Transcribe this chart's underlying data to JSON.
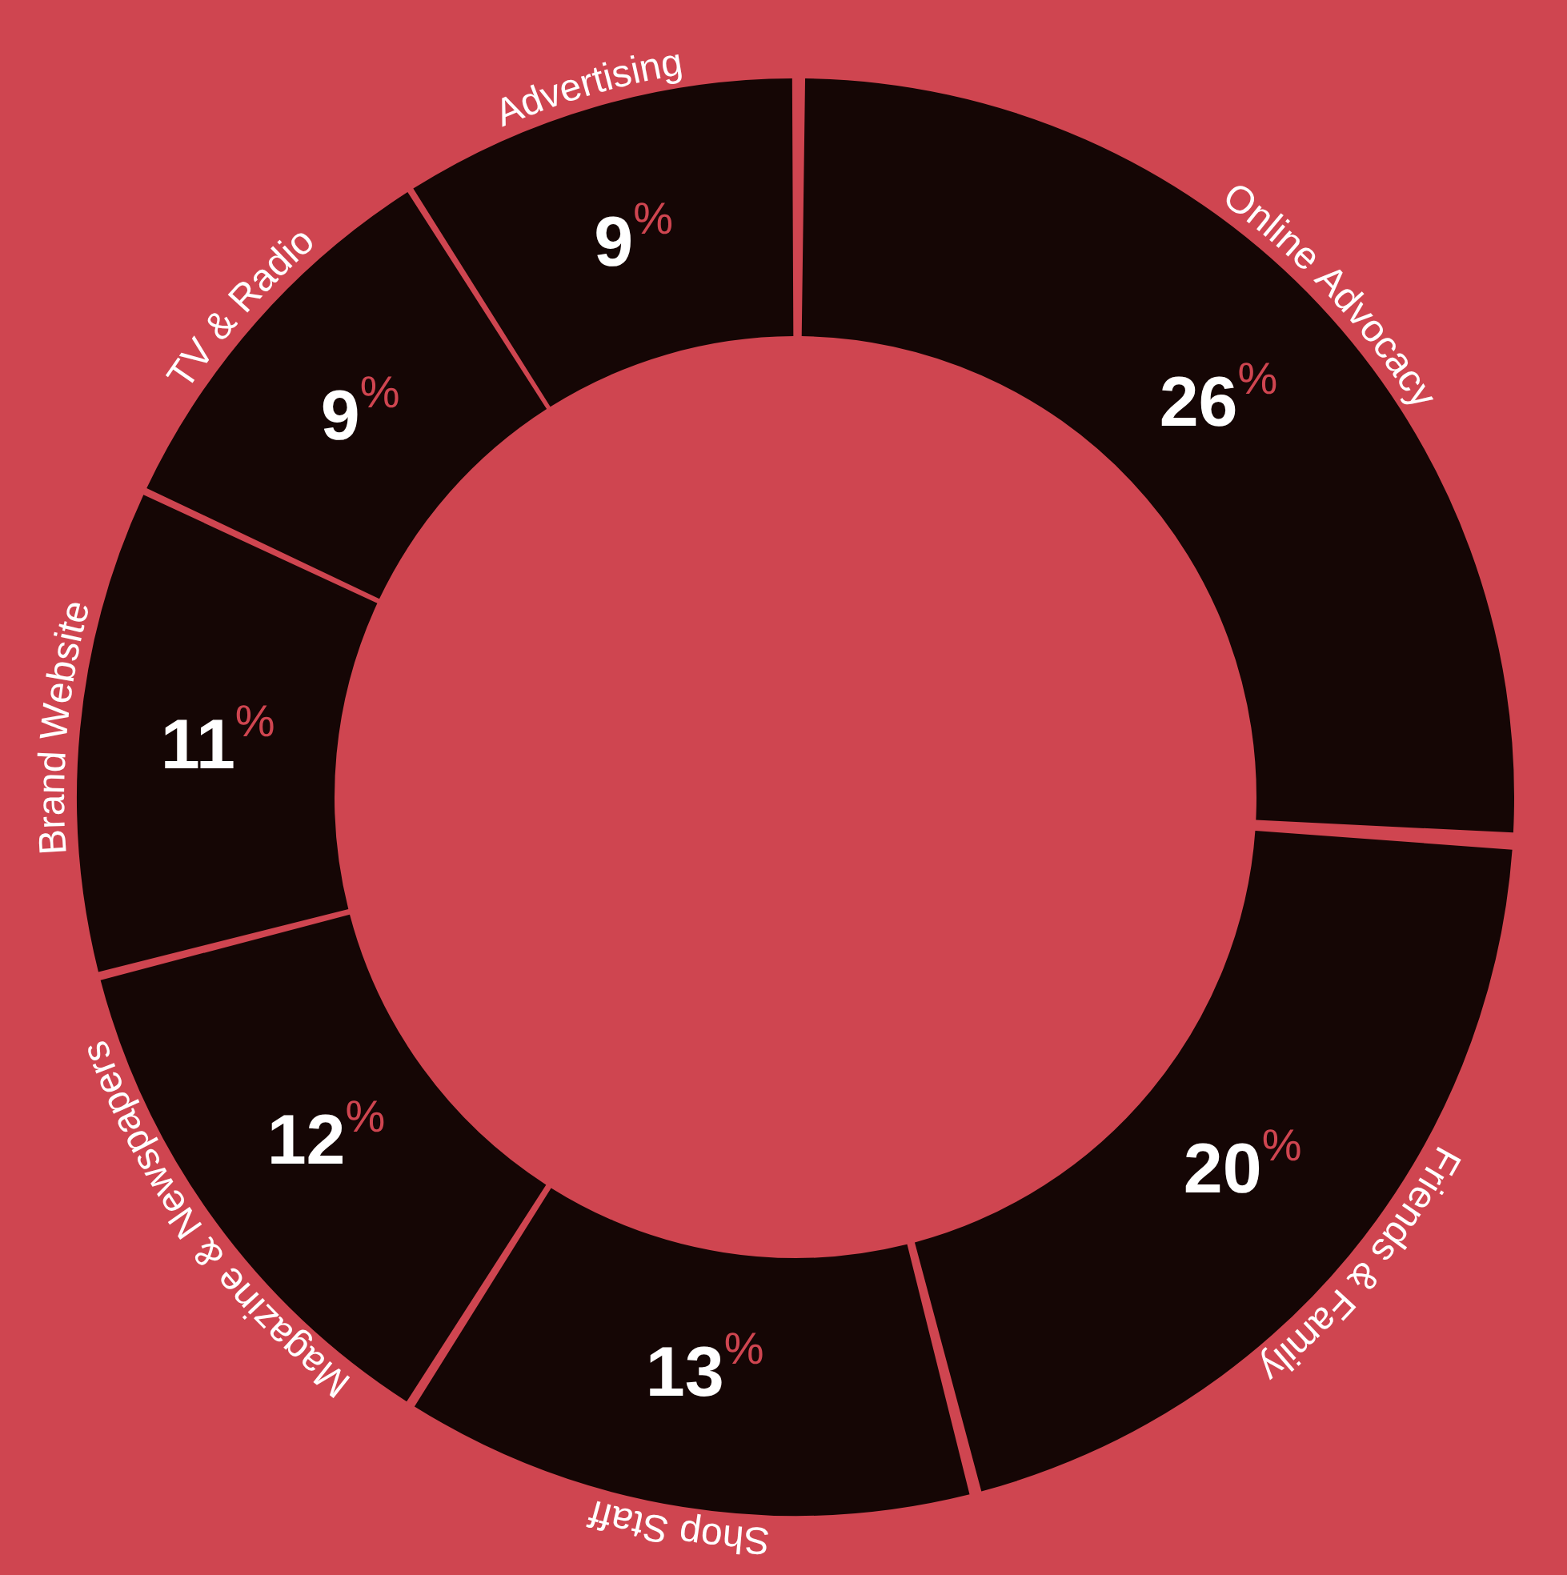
{
  "chart_data": {
    "type": "donut",
    "categories": [
      "Online Advocacy",
      "Friends & Family",
      "Shop Staff",
      "Magazine & Newspapers",
      "Brand Website",
      "TV & Radio",
      "Advertising"
    ],
    "values": [
      26,
      20,
      13,
      12,
      11,
      9,
      9
    ],
    "value_labels": [
      "26%",
      "20%",
      "13%",
      "12%",
      "11%",
      "9%",
      "9%"
    ],
    "colors": [
      "#150605",
      "#150605",
      "#150605",
      "#150605",
      "#150605",
      "#150605",
      "#150605"
    ],
    "legend": false
  }
}
